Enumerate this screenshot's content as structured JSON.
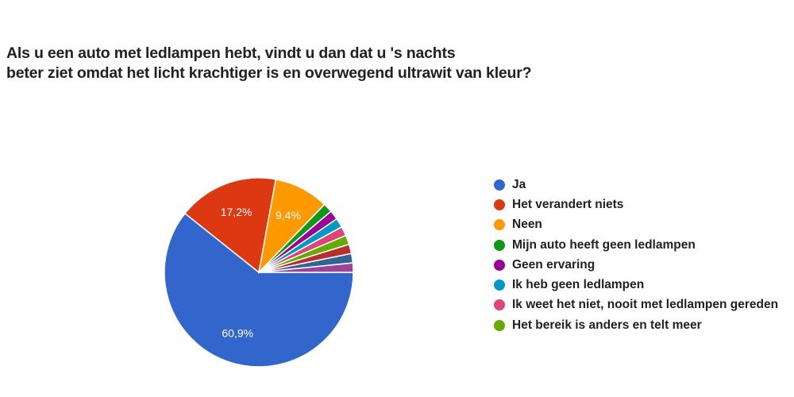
{
  "title_lines": [
    "Als u een auto met ledlampen hebt, vindt u dan dat u 's nachts",
    "beter ziet omdat het licht krachtiger is en overwegend ultrawit van kleur?"
  ],
  "chart_data": {
    "type": "pie",
    "title": "Als u een auto met ledlampen hebt, vindt u dan dat u 's nachts beter ziet omdat het licht krachtiger is en overwegend ultrawit van kleur?",
    "legend_position": "right",
    "slices": [
      {
        "name": "Ja",
        "value": 60.9,
        "label": "60,9%",
        "color": "#3366cc"
      },
      {
        "name": "Het verandert niets",
        "value": 17.2,
        "label": "17,2%",
        "color": "#dc3912"
      },
      {
        "name": "Neen",
        "value": 9.4,
        "label": "9,4%",
        "color": "#ff9900"
      },
      {
        "name": "Mijn auto heeft geen ledlampen",
        "value": 1.6,
        "color": "#109618"
      },
      {
        "name": "Geen ervaring",
        "value": 1.6,
        "color": "#990099"
      },
      {
        "name": "Ik heb geen ledlampen",
        "value": 1.6,
        "color": "#0099c6"
      },
      {
        "name": "Ik weet het niet, nooit met ledlampen gereden",
        "value": 1.6,
        "color": "#dd4477"
      },
      {
        "name": "Het bereik is anders en telt meer",
        "value": 1.6,
        "color": "#66aa00"
      },
      {
        "name": "",
        "value": 1.6,
        "color": "#b82e2e"
      },
      {
        "name": "",
        "value": 1.6,
        "color": "#316395"
      },
      {
        "name": "",
        "value": 1.6,
        "color": "#994499"
      }
    ]
  }
}
